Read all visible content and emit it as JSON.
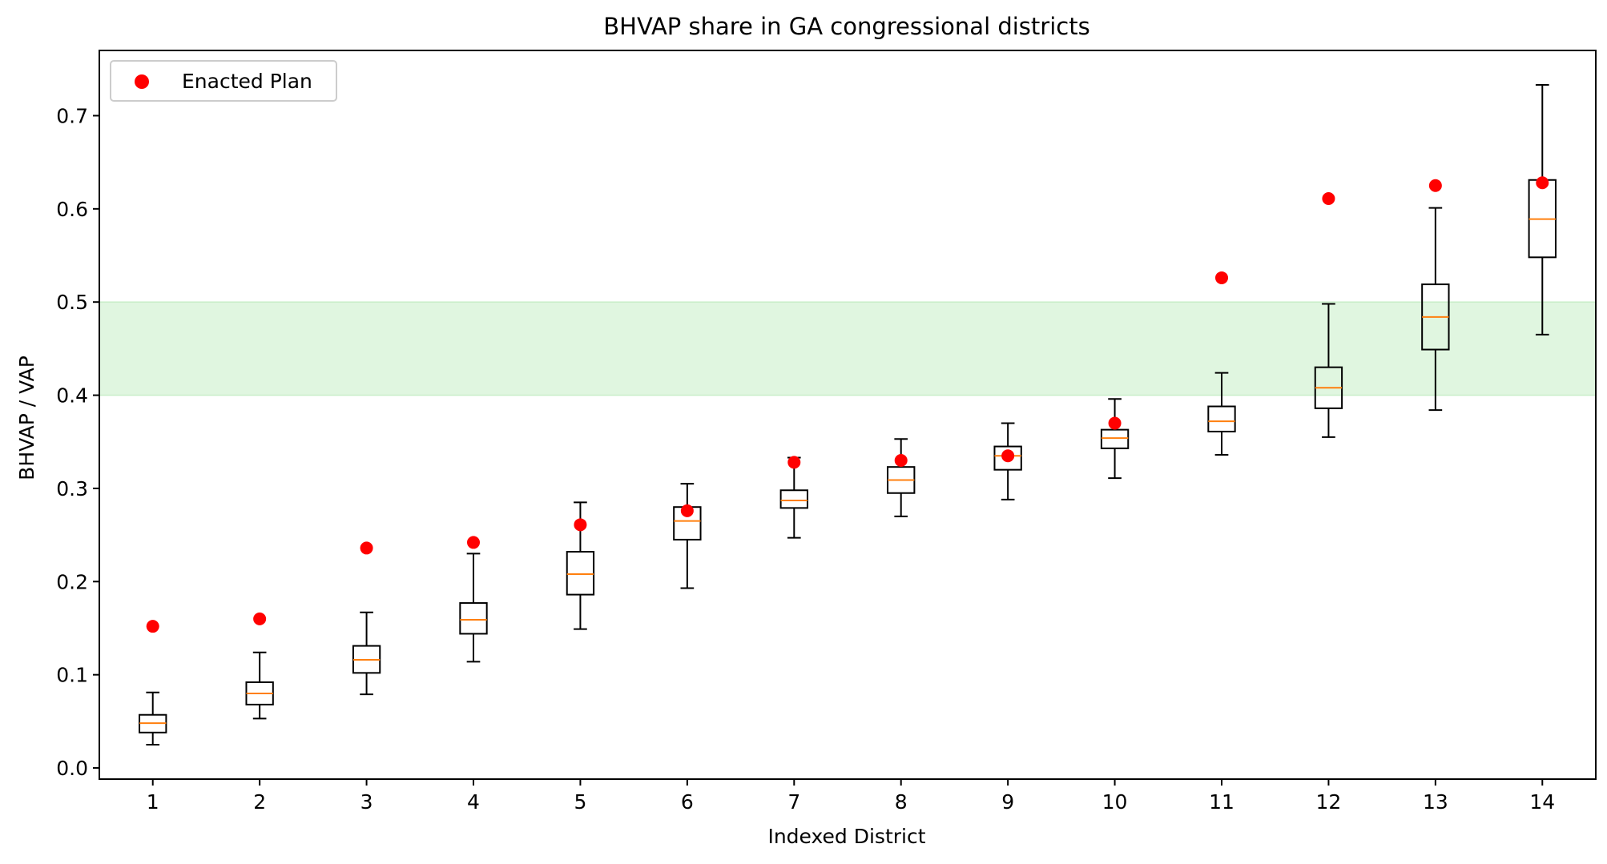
{
  "chart_data": {
    "type": "box",
    "title": "BHVAP share in GA congressional districts",
    "xlabel": "Indexed District",
    "ylabel": "BHVAP / VAP",
    "ylim": [
      -0.012,
      0.77
    ],
    "xlim": [
      0.5,
      14.5
    ],
    "yticks": [
      0.0,
      0.1,
      0.2,
      0.3,
      0.4,
      0.5,
      0.6,
      0.7
    ],
    "ytick_labels": [
      "0.0",
      "0.1",
      "0.2",
      "0.3",
      "0.4",
      "0.5",
      "0.6",
      "0.7"
    ],
    "categories": [
      "1",
      "2",
      "3",
      "4",
      "5",
      "6",
      "7",
      "8",
      "9",
      "10",
      "11",
      "12",
      "13",
      "14"
    ],
    "grid": false,
    "legend": {
      "position": "top-left",
      "entries": [
        "Enacted Plan"
      ]
    },
    "shaded_band": {
      "y0": 0.4,
      "y1": 0.5,
      "color": "#e0f6e0"
    },
    "colors": {
      "box": "#000000",
      "median": "#ff7f0e",
      "marker": "#ff0000"
    },
    "boxes": [
      {
        "district": 1,
        "whislo": 0.025,
        "q1": 0.038,
        "med": 0.048,
        "q3": 0.057,
        "whishi": 0.081
      },
      {
        "district": 2,
        "whislo": 0.053,
        "q1": 0.068,
        "med": 0.08,
        "q3": 0.092,
        "whishi": 0.124
      },
      {
        "district": 3,
        "whislo": 0.079,
        "q1": 0.102,
        "med": 0.116,
        "q3": 0.131,
        "whishi": 0.167
      },
      {
        "district": 4,
        "whislo": 0.114,
        "q1": 0.144,
        "med": 0.159,
        "q3": 0.177,
        "whishi": 0.23
      },
      {
        "district": 5,
        "whislo": 0.149,
        "q1": 0.186,
        "med": 0.208,
        "q3": 0.232,
        "whishi": 0.285
      },
      {
        "district": 6,
        "whislo": 0.193,
        "q1": 0.245,
        "med": 0.265,
        "q3": 0.28,
        "whishi": 0.305
      },
      {
        "district": 7,
        "whislo": 0.247,
        "q1": 0.279,
        "med": 0.287,
        "q3": 0.298,
        "whishi": 0.333
      },
      {
        "district": 8,
        "whislo": 0.27,
        "q1": 0.295,
        "med": 0.309,
        "q3": 0.323,
        "whishi": 0.353
      },
      {
        "district": 9,
        "whislo": 0.288,
        "q1": 0.32,
        "med": 0.335,
        "q3": 0.345,
        "whishi": 0.37
      },
      {
        "district": 10,
        "whislo": 0.311,
        "q1": 0.343,
        "med": 0.354,
        "q3": 0.363,
        "whishi": 0.396
      },
      {
        "district": 11,
        "whislo": 0.336,
        "q1": 0.361,
        "med": 0.372,
        "q3": 0.388,
        "whishi": 0.424
      },
      {
        "district": 12,
        "whislo": 0.355,
        "q1": 0.386,
        "med": 0.408,
        "q3": 0.43,
        "whishi": 0.498
      },
      {
        "district": 13,
        "whislo": 0.384,
        "q1": 0.449,
        "med": 0.484,
        "q3": 0.519,
        "whishi": 0.601
      },
      {
        "district": 14,
        "whislo": 0.465,
        "q1": 0.548,
        "med": 0.589,
        "q3": 0.631,
        "whishi": 0.733
      }
    ],
    "series": [
      {
        "name": "Enacted Plan",
        "type": "scatter",
        "x": [
          1,
          2,
          3,
          4,
          5,
          6,
          7,
          8,
          9,
          10,
          11,
          12,
          13,
          14
        ],
        "values": [
          0.152,
          0.16,
          0.236,
          0.242,
          0.261,
          0.276,
          0.328,
          0.33,
          0.335,
          0.37,
          0.526,
          0.611,
          0.625,
          0.628
        ]
      }
    ]
  }
}
